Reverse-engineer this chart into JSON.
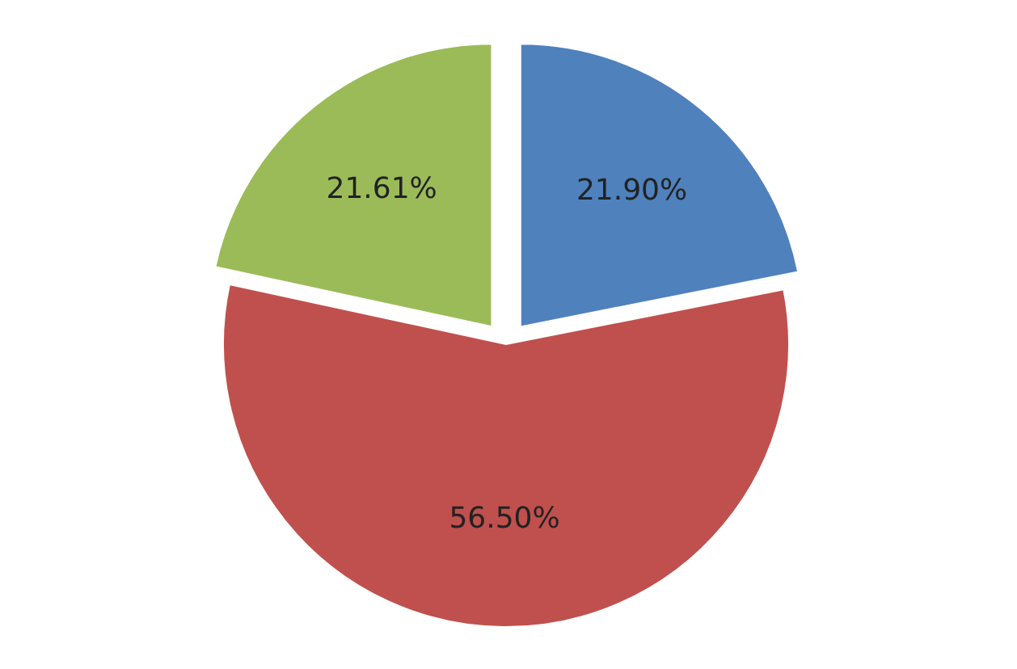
{
  "chart_data": {
    "type": "pie",
    "categories": [
      null,
      null,
      null
    ],
    "values": [
      21.9,
      56.5,
      21.61
    ],
    "colors": [
      "#4f81bd",
      "#c0504d",
      "#9bbb59"
    ],
    "value_labels": [
      "21.90%",
      "56.50%",
      "21.61%"
    ]
  }
}
